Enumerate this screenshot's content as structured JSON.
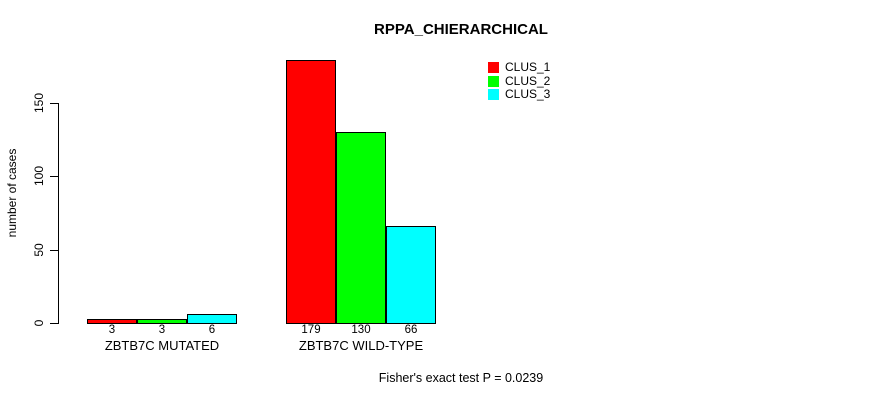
{
  "chart_data": {
    "type": "bar",
    "title": "RPPA_CHIERARCHICAL",
    "xlabel": "",
    "ylabel": "number of cases",
    "categories": [
      "ZBTB7C MUTATED",
      "ZBTB7C WILD-TYPE"
    ],
    "series": [
      {
        "name": "CLUS_1",
        "color": "#ff0000",
        "values": [
          3,
          179
        ]
      },
      {
        "name": "CLUS_2",
        "color": "#00ff00",
        "values": [
          3,
          130
        ]
      },
      {
        "name": "CLUS_3",
        "color": "#00ffff",
        "values": [
          6,
          66
        ]
      }
    ],
    "bar_value_labels": [
      [
        "3",
        "3",
        "6"
      ],
      [
        "179",
        "130",
        "66"
      ]
    ],
    "yticks": [
      0,
      50,
      100,
      150
    ],
    "ylim": [
      0,
      179
    ],
    "grid": false,
    "legend_position": "top-right-inside",
    "bar_border_color": "#000000",
    "annotation": "Fisher's exact test P = 0.0239"
  }
}
